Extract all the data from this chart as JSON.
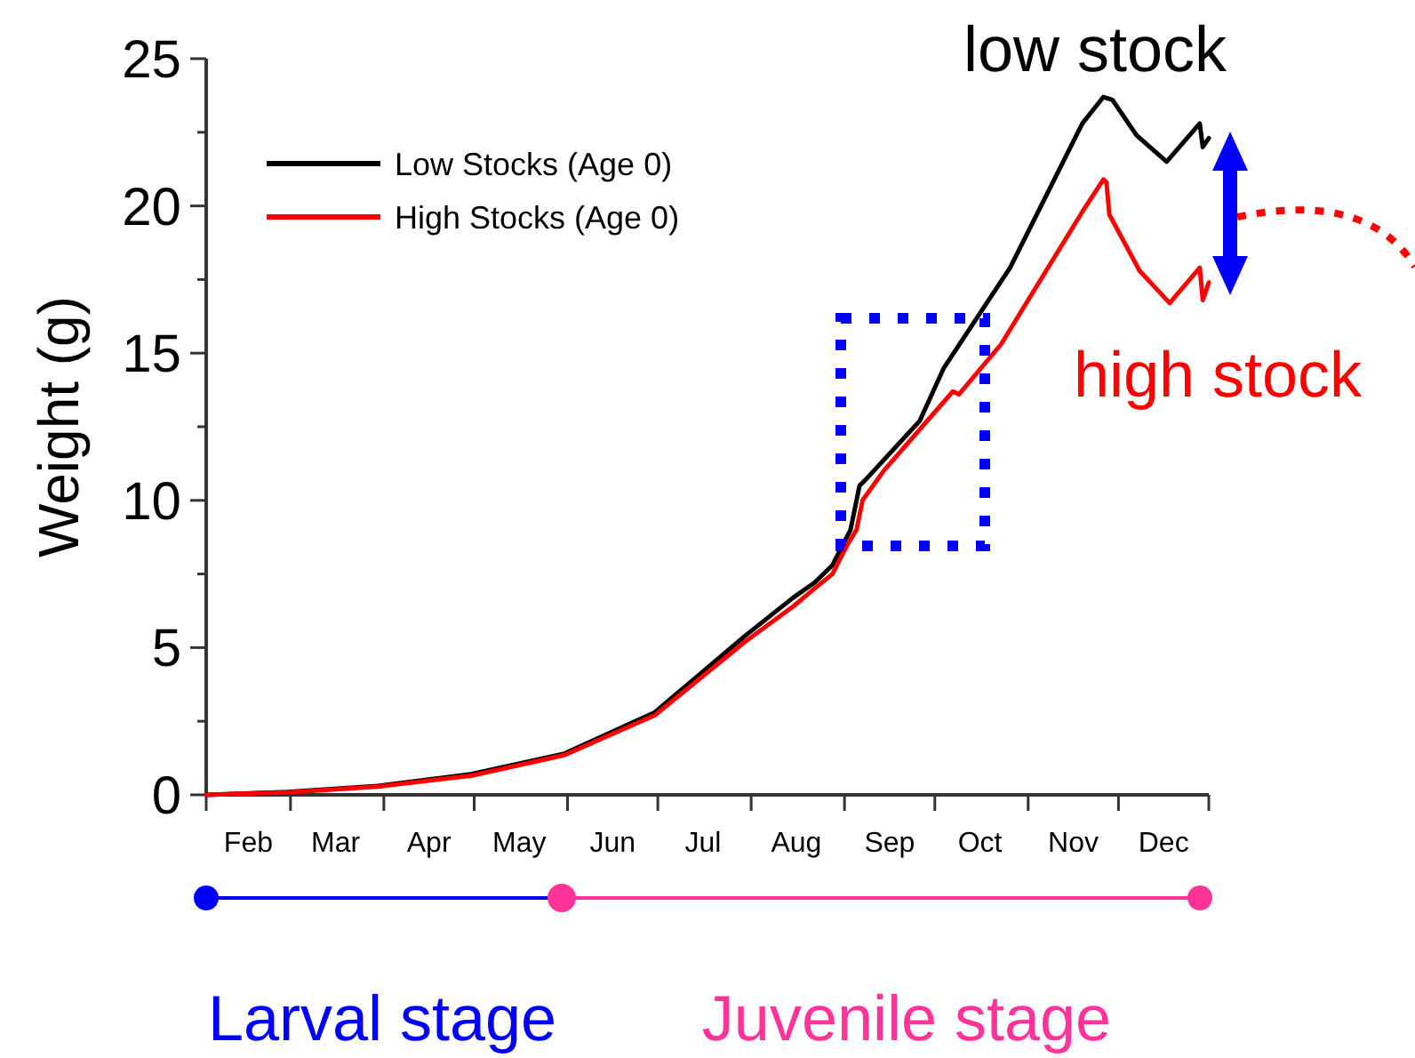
{
  "chart_data": {
    "type": "line",
    "ylabel": "Weight (g)",
    "xlim": [
      "--02-01",
      "--12-31"
    ],
    "ylim": [
      0,
      25
    ],
    "xticks": [
      {
        "value": "--02-01",
        "label": null
      },
      {
        "value": "--02-15",
        "label": "Feb"
      },
      {
        "value": "--03-01",
        "label": null
      },
      {
        "value": "--03-16",
        "label": "Mar"
      },
      {
        "value": "--04-01",
        "label": null
      },
      {
        "value": "--04-16",
        "label": "Apr"
      },
      {
        "value": "--05-01",
        "label": null
      },
      {
        "value": "--05-16",
        "label": "May"
      },
      {
        "value": "--06-01",
        "label": null
      },
      {
        "value": "--06-16",
        "label": "Jun"
      },
      {
        "value": "--07-01",
        "label": null
      },
      {
        "value": "--07-16",
        "label": "Jul"
      },
      {
        "value": "--08-01",
        "label": null
      },
      {
        "value": "--08-16",
        "label": "Aug"
      },
      {
        "value": "--09-01",
        "label": null
      },
      {
        "value": "--09-16",
        "label": "Sep"
      },
      {
        "value": "--10-01",
        "label": null
      },
      {
        "value": "--10-16",
        "label": "Oct"
      },
      {
        "value": "--11-01",
        "label": null
      },
      {
        "value": "--11-16",
        "label": "Nov"
      },
      {
        "value": "--12-01",
        "label": null
      },
      {
        "value": "--12-16",
        "label": "Dec"
      },
      {
        "value": "--12-31",
        "label": null
      }
    ],
    "yticks": [
      0,
      {
        "value": 2.5,
        "label": null
      },
      5,
      {
        "value": 7.5,
        "label": null
      },
      10,
      {
        "value": 12.5,
        "label": null
      },
      15,
      {
        "value": 17.5,
        "label": null
      },
      20,
      {
        "value": 22.5,
        "label": null
      },
      25
    ],
    "legend": "top left",
    "marker": "none",
    "line_style": "solid",
    "grid": false,
    "series": [
      {
        "name": "Low Stocks (Age 0)",
        "color": "#000000",
        "x": [
          "--02-01",
          "--02-28",
          "--03-30",
          "--04-30",
          "--05-31",
          "--06-30",
          "--07-30",
          "--08-15",
          "--08-22",
          "--08-28",
          "--09-03",
          "--09-06",
          "--09-08",
          "--09-26",
          "--10-04",
          "--10-26",
          "--11-19",
          "--11-26",
          "--11-29",
          "--12-07",
          "--12-17",
          "--12-28",
          "--12-29",
          "--12-31"
        ],
        "values": [
          0,
          0.1,
          0.3,
          0.7,
          1.4,
          2.8,
          5.4,
          6.7,
          7.2,
          7.8,
          9.0,
          10.5,
          10.7,
          12.7,
          14.5,
          17.9,
          22.8,
          23.7,
          23.6,
          22.4,
          21.5,
          22.8,
          22.0,
          22.3
        ]
      },
      {
        "name": "High Stocks (Age 0)",
        "color": "#ff0000",
        "x": [
          "--02-01",
          "--02-28",
          "--03-30",
          "--04-30",
          "--05-31",
          "--06-30",
          "--07-30",
          "--08-15",
          "--08-22",
          "--08-28",
          "--09-02",
          "--09-05",
          "--09-07",
          "--09-14",
          "--10-07",
          "--10-09",
          "--10-23",
          "--11-19",
          "--11-26",
          "--11-27",
          "--11-28",
          "--12-08",
          "--12-18",
          "--12-28",
          "--12-29",
          "--12-31"
        ],
        "values": [
          0,
          0.08,
          0.28,
          0.65,
          1.35,
          2.7,
          5.2,
          6.4,
          7.0,
          7.5,
          8.5,
          9.0,
          10.0,
          11.0,
          13.7,
          13.6,
          15.3,
          19.8,
          20.9,
          20.8,
          19.7,
          17.8,
          16.7,
          17.9,
          16.8,
          17.4
        ]
      }
    ],
    "annotations": [
      "low stock",
      "high stock",
      "Larval stage",
      "Juvenile stage"
    ]
  }
}
